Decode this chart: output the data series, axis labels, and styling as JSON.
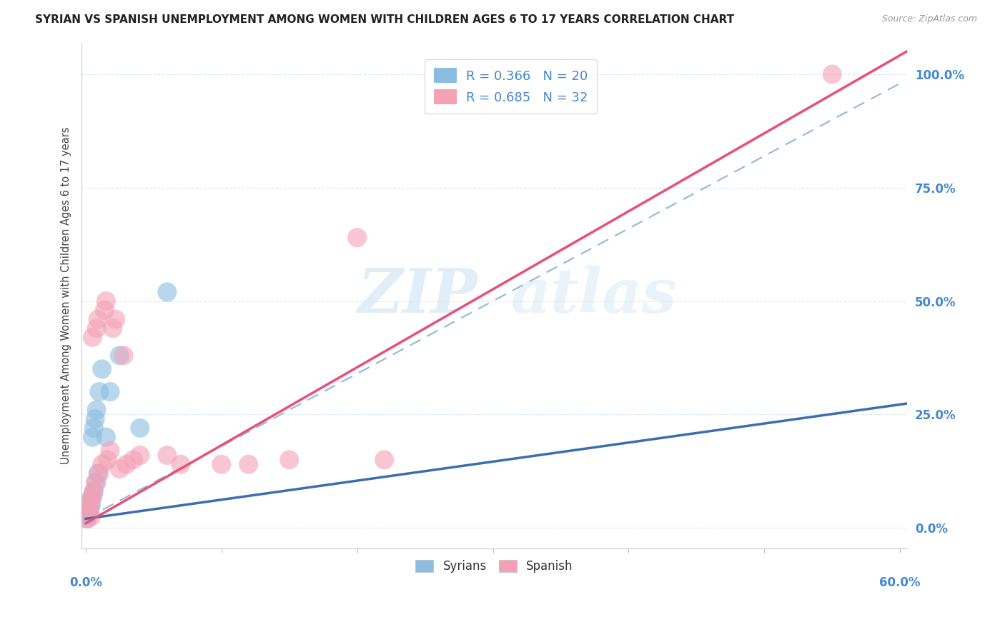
{
  "title": "SYRIAN VS SPANISH UNEMPLOYMENT AMONG WOMEN WITH CHILDREN AGES 6 TO 17 YEARS CORRELATION CHART",
  "source": "Source: ZipAtlas.com",
  "ylabel": "Unemployment Among Women with Children Ages 6 to 17 years",
  "xtick_left": "0.0%",
  "xtick_right": "60.0%",
  "xlim": [
    -0.003,
    0.605
  ],
  "ylim": [
    -0.045,
    1.07
  ],
  "yticks": [
    0.0,
    0.25,
    0.5,
    0.75,
    1.0
  ],
  "ytick_labels": [
    "0.0%",
    "25.0%",
    "50.0%",
    "75.0%",
    "100.0%"
  ],
  "legend_syrian_R": "R = 0.366",
  "legend_syrian_N": "N = 20",
  "legend_spanish_R": "R = 0.685",
  "legend_spanish_N": "N = 32",
  "syrian_color": "#8bbde0",
  "spanish_color": "#f4a0b5",
  "syrian_line_color": "#3d6db0",
  "spanish_line_color": "#e8507a",
  "dashed_line_color": "#90b8d8",
  "watermark_color": "#d5e8f5",
  "bg_color": "#ffffff",
  "grid_color": "#dde8f2",
  "axis_label_color": "#4488cc",
  "title_color": "#222222",
  "source_color": "#999999",
  "syrian_x": [
    0.001,
    0.002,
    0.003,
    0.003,
    0.004,
    0.005,
    0.005,
    0.006,
    0.006,
    0.007,
    0.008,
    0.008,
    0.009,
    0.01,
    0.012,
    0.015,
    0.018,
    0.025,
    0.04,
    0.06
  ],
  "syrian_y": [
    0.02,
    0.03,
    0.04,
    0.06,
    0.05,
    0.07,
    0.2,
    0.08,
    0.22,
    0.24,
    0.1,
    0.26,
    0.12,
    0.3,
    0.35,
    0.2,
    0.3,
    0.38,
    0.22,
    0.52
  ],
  "spanish_x": [
    0.001,
    0.002,
    0.003,
    0.004,
    0.005,
    0.005,
    0.006,
    0.007,
    0.008,
    0.009,
    0.01,
    0.012,
    0.014,
    0.015,
    0.016,
    0.018,
    0.02,
    0.022,
    0.025,
    0.028,
    0.03,
    0.035,
    0.04,
    0.06,
    0.07,
    0.1,
    0.12,
    0.15,
    0.2,
    0.22,
    0.55,
    0.004
  ],
  "spanish_y": [
    0.02,
    0.04,
    0.05,
    0.06,
    0.07,
    0.42,
    0.08,
    0.1,
    0.44,
    0.46,
    0.12,
    0.14,
    0.48,
    0.5,
    0.15,
    0.17,
    0.44,
    0.46,
    0.13,
    0.38,
    0.14,
    0.15,
    0.16,
    0.16,
    0.14,
    0.14,
    0.14,
    0.15,
    0.64,
    0.15,
    1.0,
    0.025
  ],
  "syrian_line_slope": 0.42,
  "syrian_line_intercept": 0.02,
  "spanish_line_slope": 1.72,
  "spanish_line_intercept": 0.01
}
